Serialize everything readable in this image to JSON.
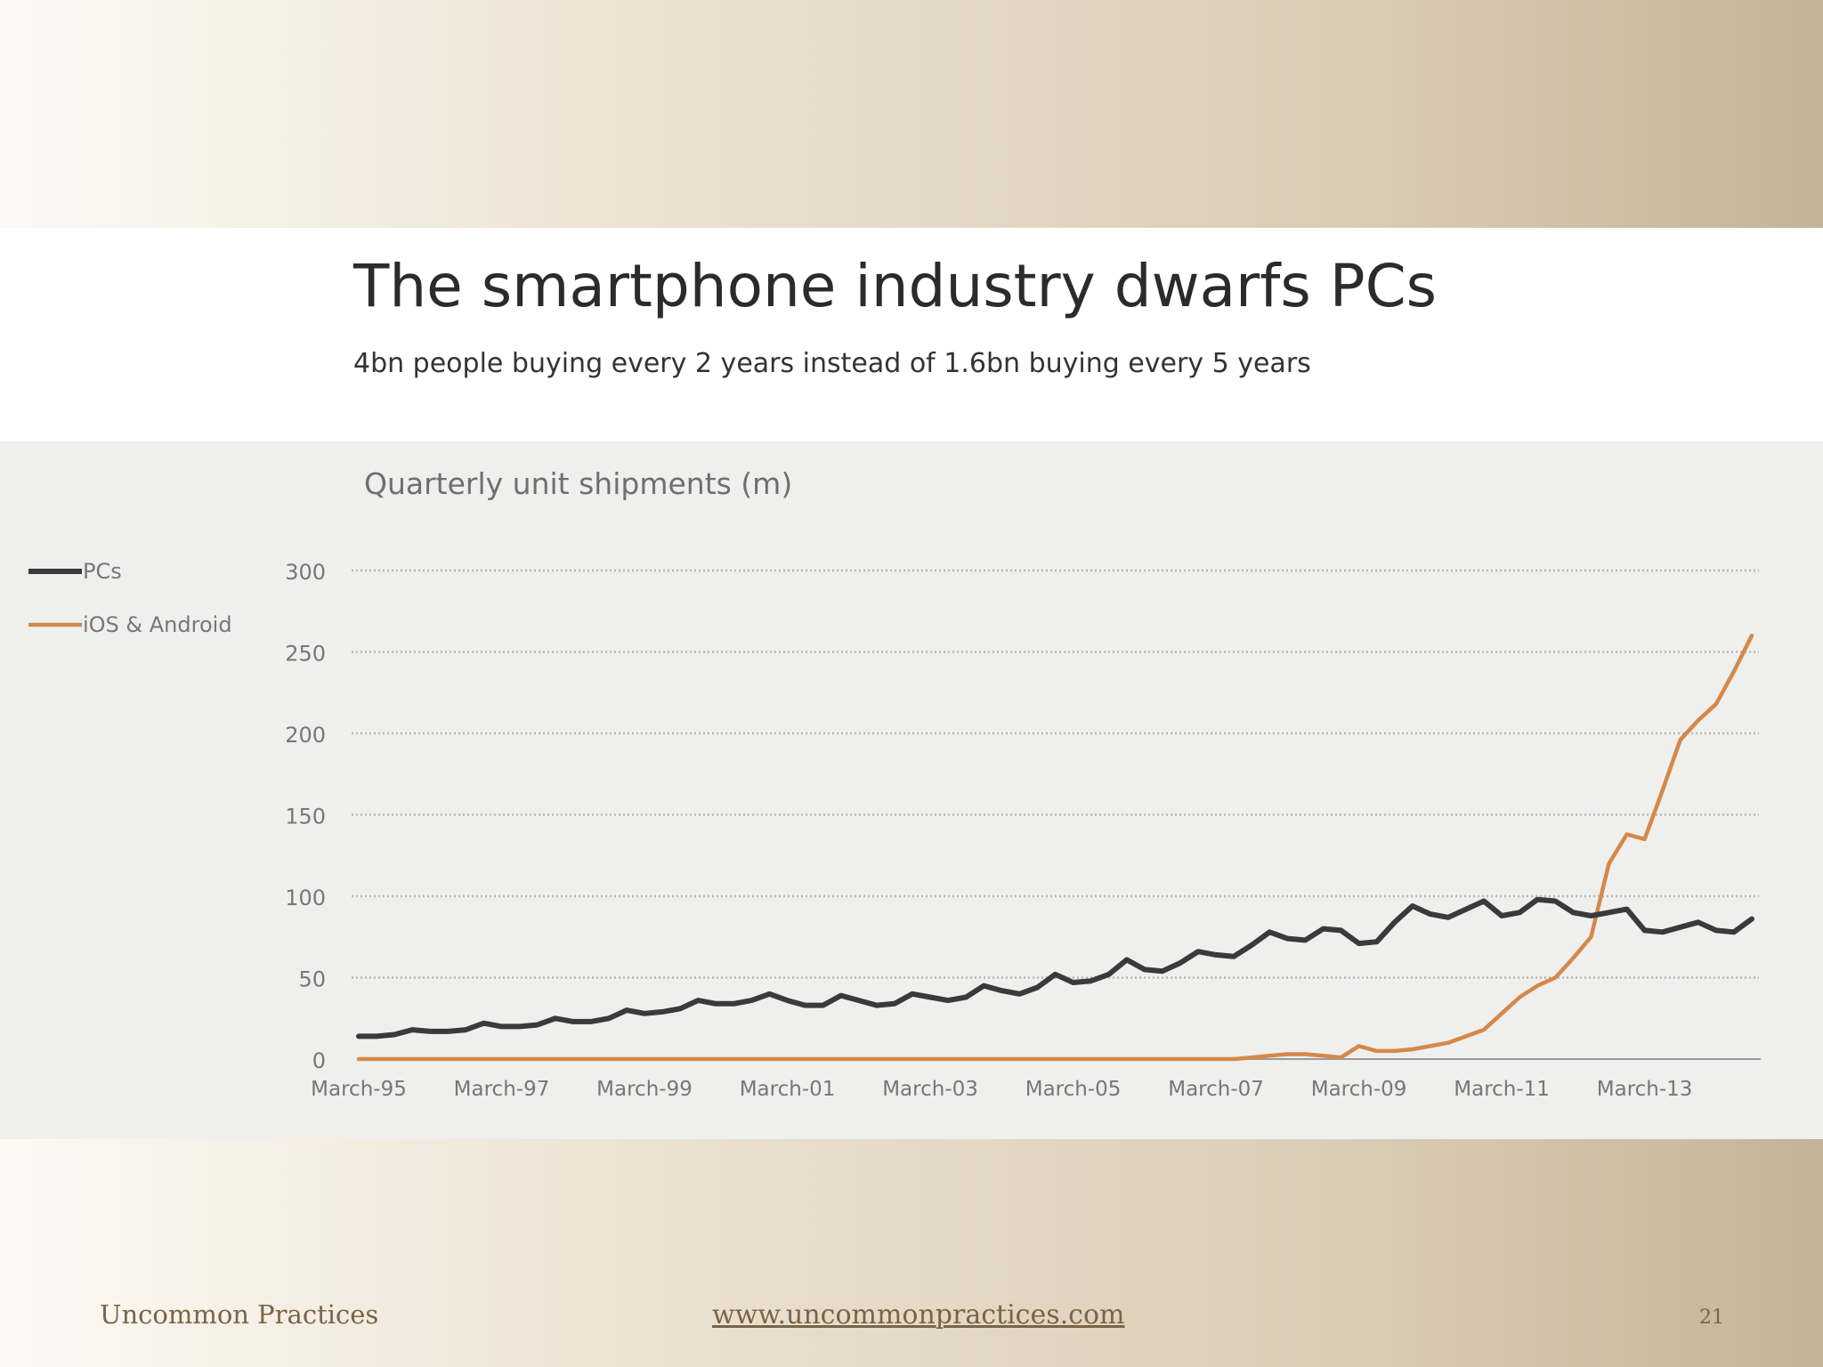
{
  "slide": {
    "title": "The smartphone industry dwarfs PCs",
    "subtitle": "4bn people buying every 2 years instead of 1.6bn buying every 5 years",
    "footer_left": "Uncommon Practices",
    "footer_center": "www.uncommonpractices.com",
    "page_number": "21"
  },
  "colors": {
    "pcs": "#3a3a3a",
    "smartphones": "#d4894a",
    "grid": "#b8b8b8",
    "axis_text": "#777777",
    "chart_title": "#6f6f6f"
  },
  "chart_data": {
    "type": "line",
    "title": "Quarterly unit shipments (m)",
    "xlabel": "",
    "ylabel": "",
    "ylim": [
      0,
      300
    ],
    "yticks": [
      0,
      50,
      100,
      150,
      200,
      250,
      300
    ],
    "x_start_quarter": "March-95",
    "xtick_labels": [
      "March-95",
      "March-97",
      "March-99",
      "March-01",
      "March-03",
      "March-05",
      "March-07",
      "March-09",
      "March-11",
      "March-13"
    ],
    "xtick_indices": [
      0,
      8,
      16,
      24,
      32,
      40,
      48,
      56,
      64,
      72
    ],
    "n_points": 79,
    "grid": "horizontal-dotted",
    "legend_position": "left",
    "series": [
      {
        "name": "PCs",
        "color_key": "pcs",
        "values": [
          14,
          14,
          15,
          18,
          17,
          17,
          18,
          22,
          20,
          20,
          21,
          25,
          23,
          23,
          25,
          30,
          28,
          29,
          31,
          36,
          34,
          34,
          36,
          40,
          36,
          33,
          33,
          39,
          36,
          33,
          34,
          40,
          38,
          36,
          38,
          45,
          42,
          40,
          44,
          52,
          47,
          48,
          52,
          61,
          55,
          54,
          59,
          66,
          64,
          63,
          70,
          78,
          74,
          73,
          80,
          79,
          71,
          72,
          84,
          94,
          89,
          87,
          92,
          97,
          88,
          90,
          98,
          97,
          90,
          88,
          90,
          92,
          79,
          78,
          81,
          84,
          79,
          78,
          86
        ]
      },
      {
        "name": "iOS & Android",
        "color_key": "smartphones",
        "values": [
          0,
          0,
          0,
          0,
          0,
          0,
          0,
          0,
          0,
          0,
          0,
          0,
          0,
          0,
          0,
          0,
          0,
          0,
          0,
          0,
          0,
          0,
          0,
          0,
          0,
          0,
          0,
          0,
          0,
          0,
          0,
          0,
          0,
          0,
          0,
          0,
          0,
          0,
          0,
          0,
          0,
          0,
          0,
          0,
          0,
          0,
          0,
          0,
          0,
          0,
          1,
          2,
          3,
          3,
          2,
          1,
          8,
          5,
          5,
          6,
          8,
          10,
          14,
          18,
          28,
          38,
          45,
          50,
          62,
          75,
          120,
          138,
          135,
          165,
          196,
          208,
          218,
          238,
          260
        ]
      }
    ]
  }
}
